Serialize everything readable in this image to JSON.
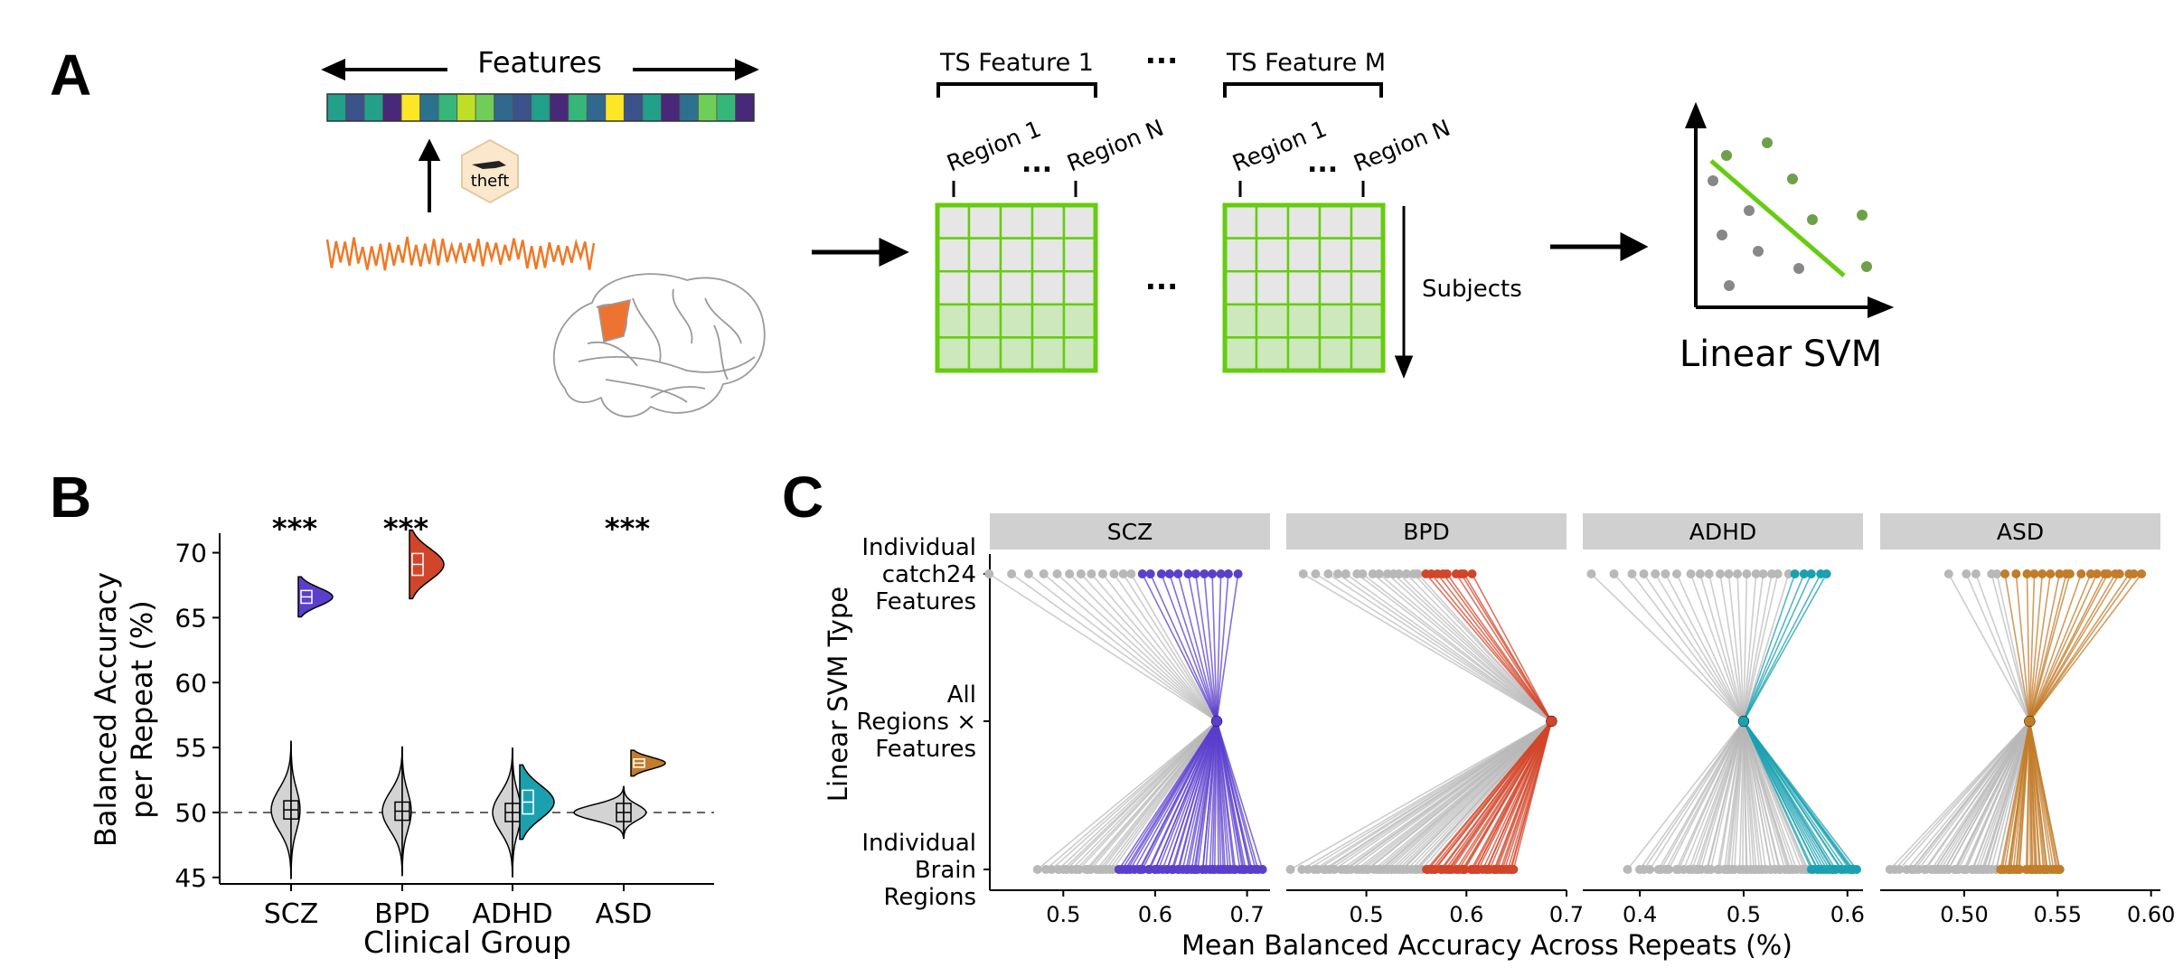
{
  "panels": {
    "a": {
      "letter": "A",
      "features_label": "Features",
      "theft_label": "theft",
      "ts_feature_first": "TS Feature 1",
      "ts_feature_last": "TS Feature M",
      "ellipsis": "...",
      "region_first": "Region 1",
      "region_last": "Region N",
      "subjects_label": "Subjects",
      "svm_label": "Linear SVM",
      "colors": {
        "timeseries": "#f07826",
        "matrix": "#66cc11",
        "green_dot": "#6ea04a",
        "gray_dot": "#888888",
        "brain_region": "#ef7330"
      },
      "feature_colors": [
        "#21a08a",
        "#3b528b",
        "#21a08a",
        "#482878",
        "#fde725",
        "#2c728e",
        "#35b779",
        "#bddf26",
        "#6ece58",
        "#31688e",
        "#3b528b",
        "#21a08a",
        "#482878",
        "#35b779",
        "#31688e",
        "#fde725",
        "#3b528b",
        "#21a08a",
        "#482878",
        "#2c728e",
        "#6ece58",
        "#35b779",
        "#482878"
      ]
    },
    "b": {
      "letter": "B",
      "ylabel_line1": "Balanced Accuracy",
      "ylabel_line2": "per Repeat (%)",
      "xlabel": "Clinical Group",
      "yticks": [
        "45",
        "50",
        "55",
        "60",
        "65",
        "70"
      ],
      "chance_level": 50,
      "ylim": [
        44.5,
        71.5
      ],
      "groups": [
        {
          "name": "SCZ",
          "sig": "***",
          "color": "#5b3fcc",
          "null_mean": 50.2,
          "null_sd": 1.6,
          "real_mean": 66.6,
          "real_sd": 0.7
        },
        {
          "name": "BPD",
          "sig": "***",
          "color": "#d1452a",
          "null_mean": 50.1,
          "null_sd": 1.5,
          "real_mean": 69.1,
          "real_sd": 1.2
        },
        {
          "name": "ADHD",
          "sig": "",
          "color": "#1ba0b0",
          "null_mean": 50.0,
          "null_sd": 1.5,
          "real_mean": 50.8,
          "real_sd": 1.3
        },
        {
          "name": "ASD",
          "sig": "***",
          "color": "#c27c2a",
          "null_mean": 50.0,
          "null_sd": 0.6,
          "real_mean": 53.8,
          "real_sd": 0.45
        }
      ]
    },
    "c": {
      "letter": "C",
      "ylabel": "Linear SVM Type",
      "xlabel": "Mean Balanced Accuracy Across Repeats (%)",
      "row_labels": [
        [
          "Individual",
          "catch24",
          "Features"
        ],
        [
          "All",
          "Regions ×",
          "Features"
        ],
        [
          "Individual",
          "Brain",
          "Regions"
        ]
      ],
      "facets": [
        {
          "name": "SCZ",
          "color": "#5b3fcc",
          "xlim": [
            0.42,
            0.725
          ],
          "ticks": [
            0.5,
            0.6,
            0.7
          ],
          "tick_labels": [
            "0.5",
            "0.6",
            "0.7"
          ],
          "center": 0.667,
          "feat_min": 0.42,
          "feat_max": 0.69,
          "feat_thresh": 0.585,
          "feat_n": 24,
          "brain_min": 0.47,
          "brain_max": 0.715,
          "brain_thresh": 0.555,
          "brain_n": 70
        },
        {
          "name": "BPD",
          "color": "#d1452a",
          "xlim": [
            0.42,
            0.7
          ],
          "ticks": [
            0.5,
            0.6,
            0.7
          ],
          "tick_labels": [
            "0.5",
            "0.6",
            "0.7"
          ],
          "center": 0.685,
          "feat_min": 0.435,
          "feat_max": 0.605,
          "feat_thresh": 0.555,
          "feat_n": 24,
          "brain_min": 0.425,
          "brain_max": 0.648,
          "brain_thresh": 0.556,
          "brain_n": 70
        },
        {
          "name": "ADHD",
          "color": "#1ba0b0",
          "xlim": [
            0.345,
            0.615
          ],
          "ticks": [
            0.4,
            0.5,
            0.6
          ],
          "tick_labels": [
            "0.4",
            "0.5",
            "0.6"
          ],
          "center": 0.5,
          "feat_min": 0.355,
          "feat_max": 0.58,
          "feat_thresh": 0.545,
          "feat_n": 24,
          "brain_min": 0.39,
          "brain_max": 0.61,
          "brain_thresh": 0.565,
          "brain_n": 70
        },
        {
          "name": "ASD",
          "color": "#c27c2a",
          "xlim": [
            0.455,
            0.605
          ],
          "ticks": [
            0.5,
            0.55,
            0.6
          ],
          "tick_labels": [
            "0.50",
            "0.55",
            "0.60"
          ],
          "center": 0.535,
          "feat_min": 0.49,
          "feat_max": 0.595,
          "feat_thresh": 0.519,
          "feat_n": 24,
          "brain_min": 0.459,
          "brain_max": 0.552,
          "brain_thresh": 0.519,
          "brain_n": 70
        }
      ]
    }
  }
}
